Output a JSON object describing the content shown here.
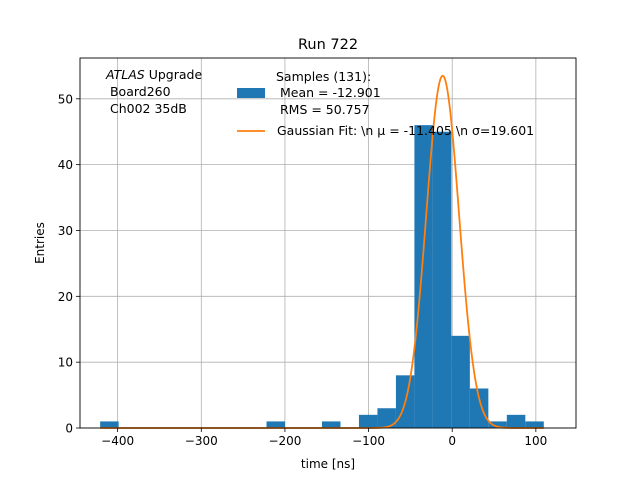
{
  "chart_data": {
    "type": "bar",
    "title": "Run 722",
    "xlabel": "time [ns]",
    "ylabel": "Entries",
    "xlim": [
      -445,
      148
    ],
    "ylim": [
      0,
      56.2
    ],
    "grid": true,
    "xticks": [
      -400,
      -300,
      -200,
      -100,
      0,
      100
    ],
    "xtick_labels": [
      "−400",
      "−300",
      "−200",
      "−100",
      "0",
      "100"
    ],
    "yticks": [
      0,
      10,
      20,
      30,
      40,
      50
    ],
    "ytick_labels": [
      "0",
      "10",
      "20",
      "30",
      "40",
      "50"
    ],
    "annotation": {
      "italic": "ATLAS",
      "line1_rest": " Upgrade",
      "line2": " Board260",
      "line3": " Ch002 35dB"
    },
    "legend": {
      "placement": "top-right",
      "hist_lines": [
        "Samples (131):",
        " Mean = -12.901",
        " RMS = 50.757"
      ],
      "fit_label": "Gaussian Fit: \\n μ = -11.405 \\n σ=19.601"
    },
    "histogram": {
      "name": "Samples (131):",
      "color": "#1f77b4",
      "bins": [
        {
          "x0": -420.9,
          "x1": -398.8,
          "count": 1
        },
        {
          "x0": -398.8,
          "x1": -376.7,
          "count": 0
        },
        {
          "x0": -376.7,
          "x1": -354.6,
          "count": 0
        },
        {
          "x0": -354.6,
          "x1": -332.5,
          "count": 0
        },
        {
          "x0": -332.5,
          "x1": -310.4,
          "count": 0
        },
        {
          "x0": -310.4,
          "x1": -288.3,
          "count": 0
        },
        {
          "x0": -288.3,
          "x1": -266.2,
          "count": 0
        },
        {
          "x0": -266.2,
          "x1": -244.1,
          "count": 0
        },
        {
          "x0": -244.1,
          "x1": -222.0,
          "count": 0
        },
        {
          "x0": -222.0,
          "x1": -199.9,
          "count": 1
        },
        {
          "x0": -199.9,
          "x1": -177.8,
          "count": 0
        },
        {
          "x0": -177.8,
          "x1": -155.7,
          "count": 0
        },
        {
          "x0": -155.7,
          "x1": -133.6,
          "count": 1
        },
        {
          "x0": -133.6,
          "x1": -111.5,
          "count": 0
        },
        {
          "x0": -111.5,
          "x1": -89.4,
          "count": 2
        },
        {
          "x0": -89.4,
          "x1": -67.3,
          "count": 3
        },
        {
          "x0": -67.3,
          "x1": -45.2,
          "count": 8
        },
        {
          "x0": -45.2,
          "x1": -23.1,
          "count": 46
        },
        {
          "x0": -23.1,
          "x1": -1.0,
          "count": 45
        },
        {
          "x0": -1.0,
          "x1": 21.1,
          "count": 14
        },
        {
          "x0": 21.1,
          "x1": 43.2,
          "count": 6
        },
        {
          "x0": 43.2,
          "x1": 65.3,
          "count": 1
        },
        {
          "x0": 65.3,
          "x1": 87.4,
          "count": 2
        },
        {
          "x0": 87.4,
          "x1": 109.5,
          "count": 1
        }
      ]
    },
    "fit": {
      "name": "Gaussian Fit",
      "color": "#ff7f0e",
      "mu": -11.405,
      "sigma": 19.601,
      "amplitude": 53.5,
      "x_range": [
        -420.9,
        109.5
      ]
    }
  }
}
